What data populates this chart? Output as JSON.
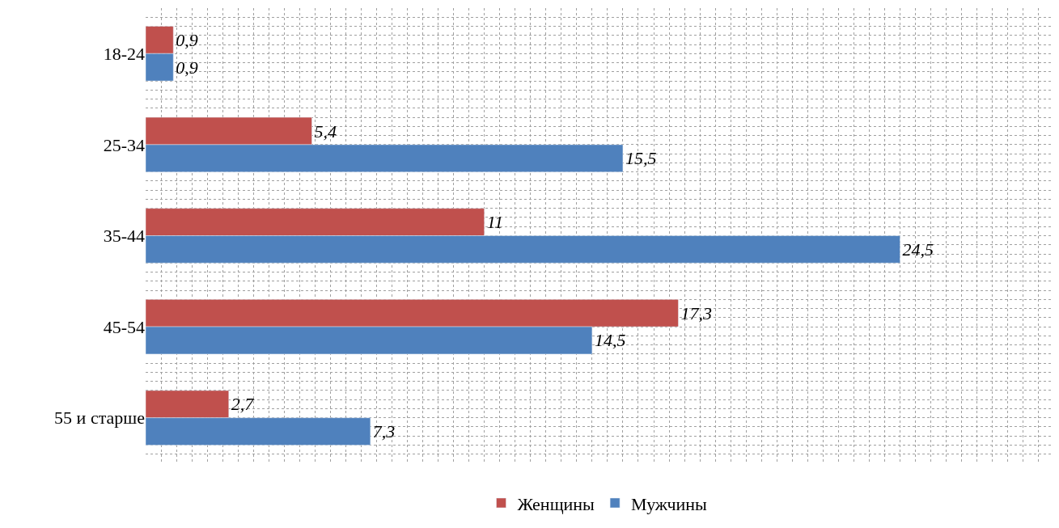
{
  "chart_data": {
    "type": "bar",
    "orientation": "horizontal",
    "categories": [
      "18-24",
      "25-34",
      "35-44",
      "45-54",
      "55 и старше"
    ],
    "series": [
      {
        "name": "Женщины",
        "color": "#c0504d",
        "values": [
          0.9,
          5.4,
          11,
          17.3,
          2.7
        ],
        "value_labels": [
          "0,9",
          "5,4",
          "11",
          "17,3",
          "2,7"
        ]
      },
      {
        "name": "Мужчины",
        "color": "#4f81bd",
        "values": [
          0.9,
          15.5,
          24.5,
          14.5,
          7.3
        ],
        "value_labels": [
          "0,9",
          "15,5",
          "24,5",
          "14,5",
          "7,3"
        ]
      }
    ],
    "grid": true,
    "legend": "bottom",
    "tick_labels": "y"
  }
}
